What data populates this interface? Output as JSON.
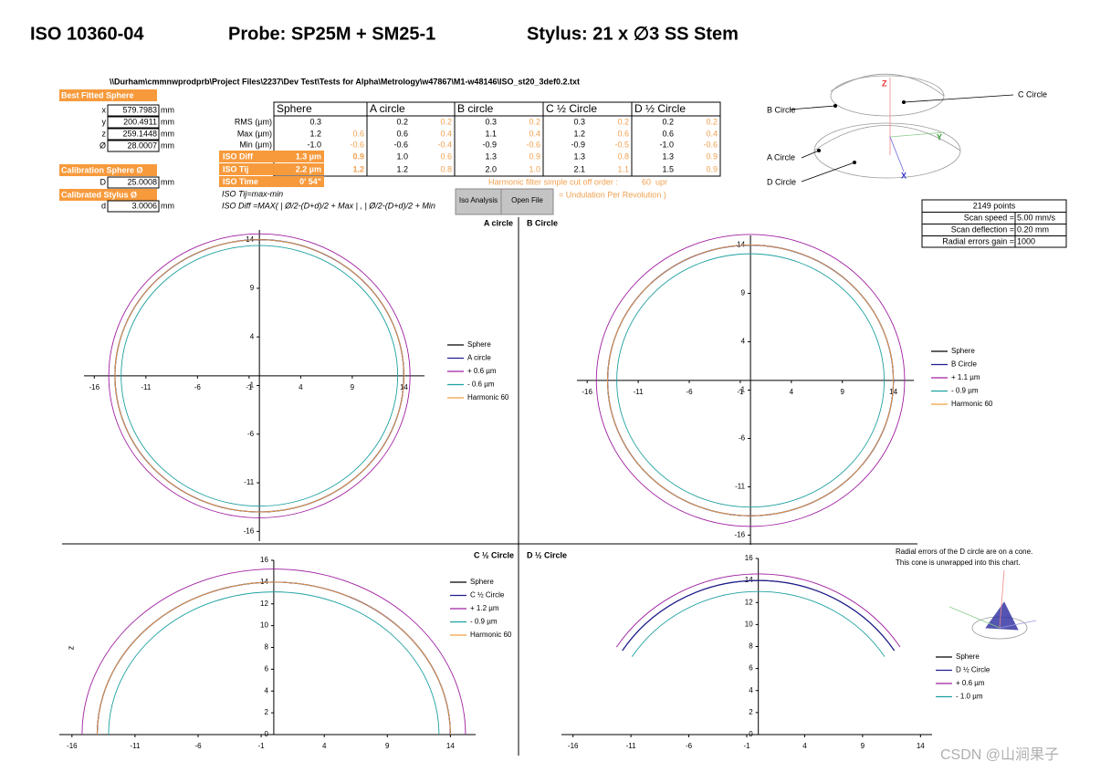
{
  "header": {
    "title": "ISO 10360-04",
    "probe": "Probe: SP25M + SM25-1",
    "stylus": "Stylus: 21 x ∅3 SS Stem"
  },
  "file_path": "\\\\Durham\\cmmnwprodprb\\Project Files\\2237\\Dev Test\\Tests for Alpha\\Metrology\\w47867\\M1-w48146\\ISO_st20_3def0.2.txt",
  "fit": {
    "title": "Best Fitted Sphere",
    "rows": [
      [
        "x",
        "579.7983",
        "mm"
      ],
      [
        "y",
        "200.4911",
        "mm"
      ],
      [
        "z",
        "259.1448",
        "mm"
      ],
      [
        "Ø",
        "28.0007",
        "mm"
      ]
    ]
  },
  "calibration": {
    "sphere_title": "Calibration  Sphere Ø",
    "sphere_row": [
      "D",
      "25.0008",
      "mm"
    ],
    "stylus_title": "Calibrated Stylus Ø",
    "stylus_row": [
      "d",
      "3.0006",
      "mm"
    ]
  },
  "results": {
    "columns": [
      "Sphere",
      "A circle",
      "B circle",
      "C ½ Circle",
      "D ½ Circle"
    ],
    "rows": [
      {
        "label": "RMS (µm)",
        "cells": [
          "0.3",
          null,
          "0.2",
          "0.2",
          "0.3",
          "0.2",
          "0.3",
          "0.2",
          "0.2",
          "0.2"
        ]
      },
      {
        "label": "Max (µm)",
        "cells": [
          "1.2",
          "0.6",
          "0.6",
          "0.4",
          "1.1",
          "0.4",
          "1.2",
          "0.6",
          "0.6",
          "0.4"
        ]
      },
      {
        "label": "Min (µm)",
        "cells": [
          "-1.0",
          "-0.6",
          "-0.6",
          "-0.4",
          "-0.9",
          "-0.6",
          "-0.9",
          "-0.5",
          "-1.0",
          "-0.6"
        ]
      },
      {
        "label": "ISO Diff",
        "cells": [
          "1.3 µm",
          "0.9",
          "1.0",
          "0.6",
          "1.3",
          "0.9",
          "1.3",
          "0.8",
          "1.3",
          "0.9"
        ]
      },
      {
        "label": "ISO Tij",
        "cells": [
          "2.2 µm",
          "1.2",
          "1.2",
          "0.8",
          "2.0",
          "1.0",
          "2.1",
          "1.1",
          "1.5",
          "0.9"
        ]
      },
      {
        "label": "ISO Time",
        "cells": [
          "0' 54\""
        ]
      }
    ]
  },
  "formulas": [
    "ISO Tij=max-min",
    "ISO Diff =MAX( | Ø/2-(D+d)/2 + Max | , | Ø/2-(D+d)/2 + Min"
  ],
  "harmonic": {
    "text": "Harmonic filter simple cut off order :",
    "order": "60",
    "unit": "upr",
    "note": "= Undulation Per Revolution )"
  },
  "buttons": [
    "Iso Analysis",
    "Open File"
  ],
  "diagram": {
    "labels": [
      "B Circle",
      "C Circle",
      "A Circle",
      "D Circle"
    ],
    "axes": [
      "Z",
      "Y",
      "X"
    ]
  },
  "info": [
    [
      "2149 points"
    ],
    [
      "Scan speed =",
      "5.00 mm/s"
    ],
    [
      "Scan deflection =",
      "0.20 mm"
    ],
    [
      "Radial errors gain =",
      "1000"
    ]
  ],
  "charts": [
    {
      "title": "A circle",
      "xlim": [
        -17,
        16
      ],
      "ylim": [
        -17,
        15
      ],
      "xticks": [
        -16,
        -11,
        -6,
        -1,
        4,
        9,
        14
      ],
      "yticks": [
        -16,
        -11,
        -6,
        -1,
        4,
        9,
        14
      ],
      "arc_degrees": [
        0,
        360
      ],
      "series": [
        {
          "name": "Sphere",
          "color": "#000000",
          "r": 14
        },
        {
          "name": "A circle",
          "color": "#1f1f8f",
          "r": 14
        },
        {
          "name": "+ 0.6 µm",
          "color": "#a020a0",
          "r": 14.6
        },
        {
          "name": "- 0.6 µm",
          "color": "#1fa0a0",
          "r": 13.4
        },
        {
          "name": "Harmonic 60",
          "color": "#f0a040",
          "r": 14
        }
      ]
    },
    {
      "title": "B Circle",
      "xlim": [
        -17,
        16
      ],
      "ylim": [
        -17,
        15
      ],
      "xticks": [
        -16,
        -11,
        -6,
        -1,
        4,
        9,
        14
      ],
      "yticks": [
        -16,
        -11,
        -6,
        -1,
        4,
        9,
        14
      ],
      "arc_degrees": [
        0,
        360
      ],
      "series": [
        {
          "name": "Sphere",
          "color": "#000000",
          "r": 14
        },
        {
          "name": "B Circle",
          "color": "#1f1f8f",
          "r": 14
        },
        {
          "name": "+ 1.1 µm",
          "color": "#a020a0",
          "r": 15.1
        },
        {
          "name": "- 0.9 µm",
          "color": "#1fa0a0",
          "r": 13.1
        },
        {
          "name": "Harmonic 60",
          "color": "#f0a040",
          "r": 14
        }
      ]
    },
    {
      "title": "C ½ Circle",
      "ylabel": "z",
      "xlim": [
        -17,
        16
      ],
      "ylim": [
        0,
        16
      ],
      "xticks": [
        -16,
        -11,
        -6,
        -1,
        4,
        9,
        14
      ],
      "yticks": [
        0,
        2,
        4,
        6,
        8,
        10,
        12,
        14,
        16
      ],
      "arc_degrees": [
        0,
        180
      ],
      "series": [
        {
          "name": "Sphere",
          "color": "#000000",
          "r": 14
        },
        {
          "name": "C ½ Circle",
          "color": "#1f1f8f",
          "r": 14
        },
        {
          "name": "+ 1.2 µm",
          "color": "#a020a0",
          "r": 15.2
        },
        {
          "name": "- 0.9 µm",
          "color": "#1fa0a0",
          "r": 13.1
        },
        {
          "name": "Harmonic 60",
          "color": "#f0a040",
          "r": 14
        }
      ]
    },
    {
      "title": "D ½ Circle",
      "note": [
        "Radial errors of the D circle are on a cone.",
        "This cone is unwrapped into this chart."
      ],
      "xlim": [
        -17,
        15
      ],
      "ylim": [
        0,
        16
      ],
      "xticks": [
        -16,
        -11,
        -6,
        -1,
        4,
        9,
        14
      ],
      "yticks": [
        0,
        2,
        4,
        6,
        8,
        10,
        12,
        14,
        16
      ],
      "arc_degrees": [
        33,
        147
      ],
      "series": [
        {
          "name": "Sphere",
          "color": "#000000",
          "r": 14
        },
        {
          "name": "D ½ Circle",
          "color": "#1f1f8f",
          "r": 14
        },
        {
          "name": "+ 0.6 µm",
          "color": "#a020a0",
          "r": 14.6
        },
        {
          "name": "- 1.0 µm",
          "color": "#1fa0a0",
          "r": 13
        }
      ]
    }
  ],
  "watermark": "CSDN @山涧果子"
}
